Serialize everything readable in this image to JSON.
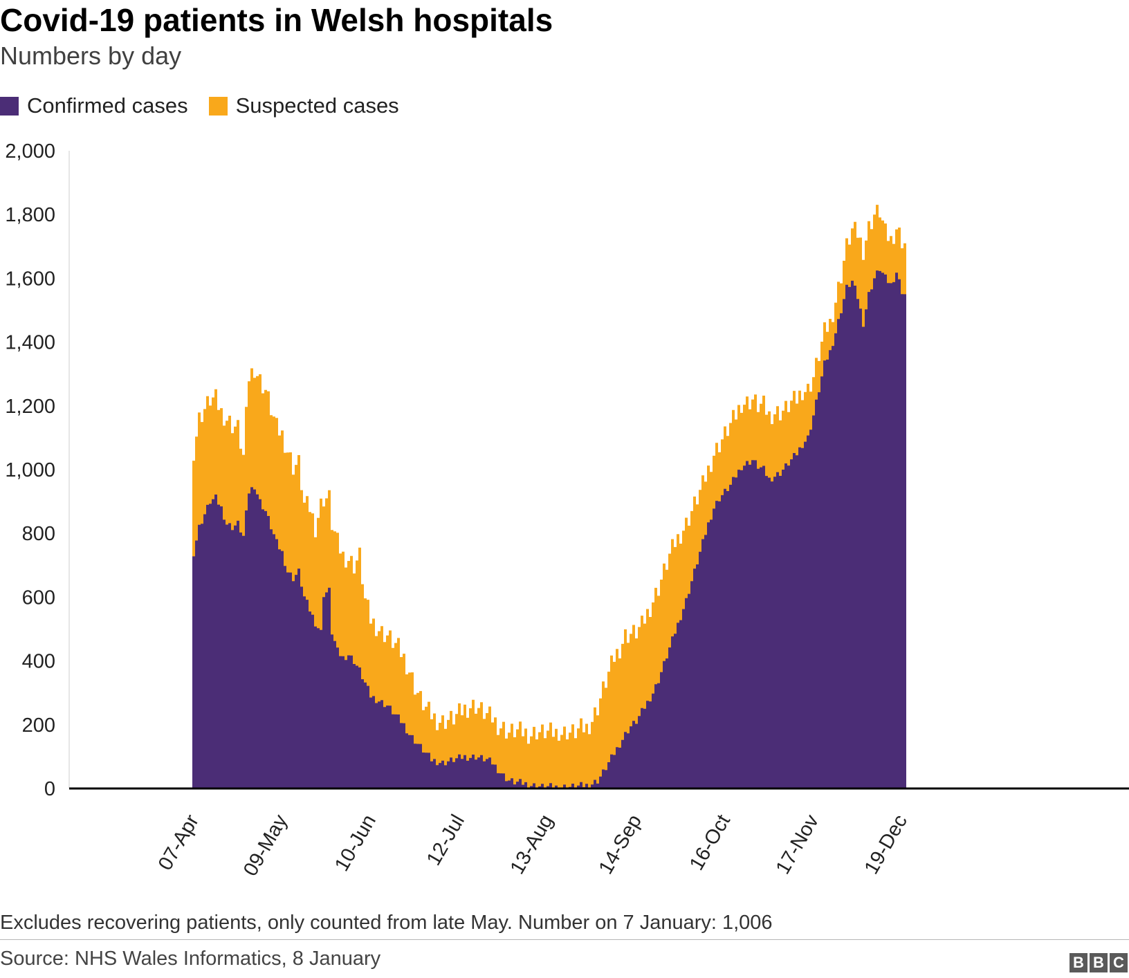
{
  "header": {
    "title": "Covid-19 patients in Welsh hospitals",
    "subtitle": "Numbers by day"
  },
  "legend": {
    "items": [
      {
        "label": "Confirmed cases",
        "color": "#4b2d76"
      },
      {
        "label": "Suspected cases",
        "color": "#f9a81b"
      }
    ]
  },
  "footer": {
    "note": "Excludes recovering patients, only counted from late May. Number on 7 January: 1,006",
    "source": "Source: NHS Wales Informatics, 8 January",
    "logo_letters": [
      "B",
      "B",
      "C"
    ]
  },
  "chart_data": {
    "type": "area",
    "stacked": true,
    "title": "Covid-19 patients in Welsh hospitals",
    "subtitle": "Numbers by day",
    "xlabel": "",
    "ylabel": "",
    "ylim": [
      0,
      2000
    ],
    "yticks": [
      0,
      200,
      400,
      600,
      800,
      1000,
      1200,
      1400,
      1600,
      1800,
      2000
    ],
    "ytick_labels": [
      "0",
      "200",
      "400",
      "600",
      "800",
      "1,000",
      "1,200",
      "1,400",
      "1,600",
      "1,800",
      "2,000"
    ],
    "xlim_days": [
      -45,
      338
    ],
    "xticks": [
      {
        "label": "07-Apr",
        "day": 0
      },
      {
        "label": "09-May",
        "day": 32
      },
      {
        "label": "10-Jun",
        "day": 64
      },
      {
        "label": "12-Jul",
        "day": 96
      },
      {
        "label": "13-Aug",
        "day": 128
      },
      {
        "label": "14-Sep",
        "day": 160
      },
      {
        "label": "16-Oct",
        "day": 192
      },
      {
        "label": "17-Nov",
        "day": 224
      },
      {
        "label": "19-Dec",
        "day": 256
      }
    ],
    "grid": false,
    "legend_position": "top-left",
    "series": [
      {
        "name": "Confirmed cases",
        "color": "#4b2d76",
        "points": [
          [
            0,
            740
          ],
          [
            2,
            820
          ],
          [
            4,
            860
          ],
          [
            6,
            900
          ],
          [
            8,
            910
          ],
          [
            10,
            880
          ],
          [
            12,
            830
          ],
          [
            14,
            820
          ],
          [
            16,
            830
          ],
          [
            18,
            790
          ],
          [
            20,
            930
          ],
          [
            22,
            950
          ],
          [
            24,
            900
          ],
          [
            26,
            870
          ],
          [
            28,
            820
          ],
          [
            30,
            770
          ],
          [
            32,
            740
          ],
          [
            34,
            680
          ],
          [
            36,
            660
          ],
          [
            38,
            680
          ],
          [
            40,
            600
          ],
          [
            42,
            560
          ],
          [
            44,
            520
          ],
          [
            46,
            490
          ],
          [
            47,
            610
          ],
          [
            49,
            620
          ],
          [
            50,
            490
          ],
          [
            52,
            430
          ],
          [
            54,
            410
          ],
          [
            56,
            420
          ],
          [
            58,
            400
          ],
          [
            60,
            370
          ],
          [
            62,
            330
          ],
          [
            64,
            290
          ],
          [
            66,
            280
          ],
          [
            68,
            270
          ],
          [
            70,
            260
          ],
          [
            72,
            240
          ],
          [
            74,
            220
          ],
          [
            76,
            200
          ],
          [
            78,
            170
          ],
          [
            80,
            150
          ],
          [
            82,
            130
          ],
          [
            84,
            110
          ],
          [
            86,
            90
          ],
          [
            88,
            85
          ],
          [
            90,
            80
          ],
          [
            92,
            85
          ],
          [
            94,
            90
          ],
          [
            96,
            95
          ],
          [
            98,
            100
          ],
          [
            100,
            98
          ],
          [
            102,
            100
          ],
          [
            104,
            95
          ],
          [
            106,
            90
          ],
          [
            108,
            80
          ],
          [
            110,
            60
          ],
          [
            112,
            40
          ],
          [
            114,
            25
          ],
          [
            116,
            20
          ],
          [
            118,
            18
          ],
          [
            120,
            15
          ],
          [
            122,
            10
          ],
          [
            124,
            8
          ],
          [
            126,
            5
          ],
          [
            128,
            5
          ],
          [
            130,
            5
          ],
          [
            132,
            4
          ],
          [
            134,
            5
          ],
          [
            136,
            5
          ],
          [
            138,
            6
          ],
          [
            140,
            8
          ],
          [
            142,
            10
          ],
          [
            144,
            15
          ],
          [
            146,
            25
          ],
          [
            148,
            50
          ],
          [
            150,
            80
          ],
          [
            152,
            110
          ],
          [
            154,
            140
          ],
          [
            156,
            170
          ],
          [
            158,
            195
          ],
          [
            160,
            210
          ],
          [
            162,
            240
          ],
          [
            164,
            270
          ],
          [
            166,
            300
          ],
          [
            168,
            340
          ],
          [
            170,
            390
          ],
          [
            172,
            440
          ],
          [
            174,
            490
          ],
          [
            176,
            540
          ],
          [
            178,
            590
          ],
          [
            180,
            650
          ],
          [
            182,
            710
          ],
          [
            184,
            770
          ],
          [
            186,
            830
          ],
          [
            188,
            880
          ],
          [
            190,
            910
          ],
          [
            192,
            930
          ],
          [
            194,
            950
          ],
          [
            196,
            980
          ],
          [
            198,
            1010
          ],
          [
            200,
            1020
          ],
          [
            202,
            1030
          ],
          [
            204,
            1010
          ],
          [
            206,
            1000
          ],
          [
            208,
            970
          ],
          [
            210,
            980
          ],
          [
            212,
            990
          ],
          [
            214,
            1010
          ],
          [
            216,
            1030
          ],
          [
            218,
            1050
          ],
          [
            220,
            1080
          ],
          [
            222,
            1100
          ],
          [
            224,
            1170
          ],
          [
            226,
            1250
          ],
          [
            228,
            1330
          ],
          [
            230,
            1370
          ],
          [
            232,
            1430
          ],
          [
            234,
            1500
          ],
          [
            236,
            1570
          ],
          [
            238,
            1590
          ],
          [
            240,
            1540
          ],
          [
            242,
            1460
          ],
          [
            244,
            1550
          ],
          [
            246,
            1600
          ],
          [
            248,
            1630
          ],
          [
            250,
            1600
          ],
          [
            252,
            1580
          ],
          [
            254,
            1620
          ],
          [
            256,
            1560
          ],
          [
            257,
            1550
          ]
        ]
      },
      {
        "name": "Suspected cases",
        "color": "#f9a81b",
        "points": [
          [
            0,
            320
          ],
          [
            2,
            340
          ],
          [
            4,
            330
          ],
          [
            6,
            320
          ],
          [
            8,
            310
          ],
          [
            10,
            300
          ],
          [
            12,
            330
          ],
          [
            14,
            320
          ],
          [
            16,
            300
          ],
          [
            18,
            250
          ],
          [
            20,
            360
          ],
          [
            22,
            370
          ],
          [
            24,
            380
          ],
          [
            26,
            380
          ],
          [
            28,
            370
          ],
          [
            30,
            360
          ],
          [
            32,
            370
          ],
          [
            34,
            380
          ],
          [
            36,
            350
          ],
          [
            38,
            340
          ],
          [
            40,
            290
          ],
          [
            42,
            320
          ],
          [
            44,
            300
          ],
          [
            46,
            400
          ],
          [
            47,
            300
          ],
          [
            49,
            290
          ],
          [
            50,
            340
          ],
          [
            52,
            340
          ],
          [
            54,
            320
          ],
          [
            56,
            300
          ],
          [
            58,
            300
          ],
          [
            60,
            360
          ],
          [
            62,
            260
          ],
          [
            64,
            240
          ],
          [
            66,
            230
          ],
          [
            68,
            220
          ],
          [
            70,
            220
          ],
          [
            72,
            220
          ],
          [
            74,
            220
          ],
          [
            76,
            210
          ],
          [
            78,
            200
          ],
          [
            80,
            170
          ],
          [
            82,
            150
          ],
          [
            84,
            140
          ],
          [
            86,
            140
          ],
          [
            88,
            130
          ],
          [
            90,
            130
          ],
          [
            92,
            130
          ],
          [
            94,
            130
          ],
          [
            96,
            140
          ],
          [
            98,
            150
          ],
          [
            100,
            160
          ],
          [
            102,
            160
          ],
          [
            104,
            150
          ],
          [
            106,
            140
          ],
          [
            108,
            140
          ],
          [
            110,
            140
          ],
          [
            112,
            150
          ],
          [
            114,
            150
          ],
          [
            116,
            160
          ],
          [
            118,
            160
          ],
          [
            120,
            160
          ],
          [
            122,
            160
          ],
          [
            124,
            170
          ],
          [
            126,
            170
          ],
          [
            128,
            170
          ],
          [
            130,
            170
          ],
          [
            132,
            170
          ],
          [
            134,
            170
          ],
          [
            136,
            170
          ],
          [
            138,
            170
          ],
          [
            140,
            180
          ],
          [
            142,
            180
          ],
          [
            144,
            200
          ],
          [
            146,
            230
          ],
          [
            148,
            260
          ],
          [
            150,
            280
          ],
          [
            152,
            300
          ],
          [
            154,
            300
          ],
          [
            156,
            310
          ],
          [
            158,
            290
          ],
          [
            160,
            280
          ],
          [
            162,
            270
          ],
          [
            164,
            280
          ],
          [
            166,
            290
          ],
          [
            168,
            290
          ],
          [
            170,
            290
          ],
          [
            172,
            290
          ],
          [
            174,
            280
          ],
          [
            176,
            260
          ],
          [
            178,
            240
          ],
          [
            180,
            220
          ],
          [
            182,
            200
          ],
          [
            184,
            180
          ],
          [
            186,
            170
          ],
          [
            188,
            170
          ],
          [
            190,
            170
          ],
          [
            192,
            180
          ],
          [
            194,
            190
          ],
          [
            196,
            190
          ],
          [
            198,
            200
          ],
          [
            200,
            190
          ],
          [
            202,
            190
          ],
          [
            204,
            190
          ],
          [
            206,
            200
          ],
          [
            208,
            200
          ],
          [
            210,
            200
          ],
          [
            212,
            190
          ],
          [
            214,
            180
          ],
          [
            216,
            180
          ],
          [
            218,
            170
          ],
          [
            220,
            170
          ],
          [
            222,
            150
          ],
          [
            224,
            120
          ],
          [
            226,
            110
          ],
          [
            228,
            100
          ],
          [
            230,
            90
          ],
          [
            232,
            100
          ],
          [
            234,
            110
          ],
          [
            236,
            130
          ],
          [
            238,
            160
          ],
          [
            240,
            200
          ],
          [
            242,
            230
          ],
          [
            244,
            210
          ],
          [
            246,
            200
          ],
          [
            248,
            180
          ],
          [
            250,
            140
          ],
          [
            252,
            140
          ],
          [
            254,
            140
          ],
          [
            256,
            160
          ],
          [
            257,
            160
          ]
        ]
      }
    ]
  }
}
